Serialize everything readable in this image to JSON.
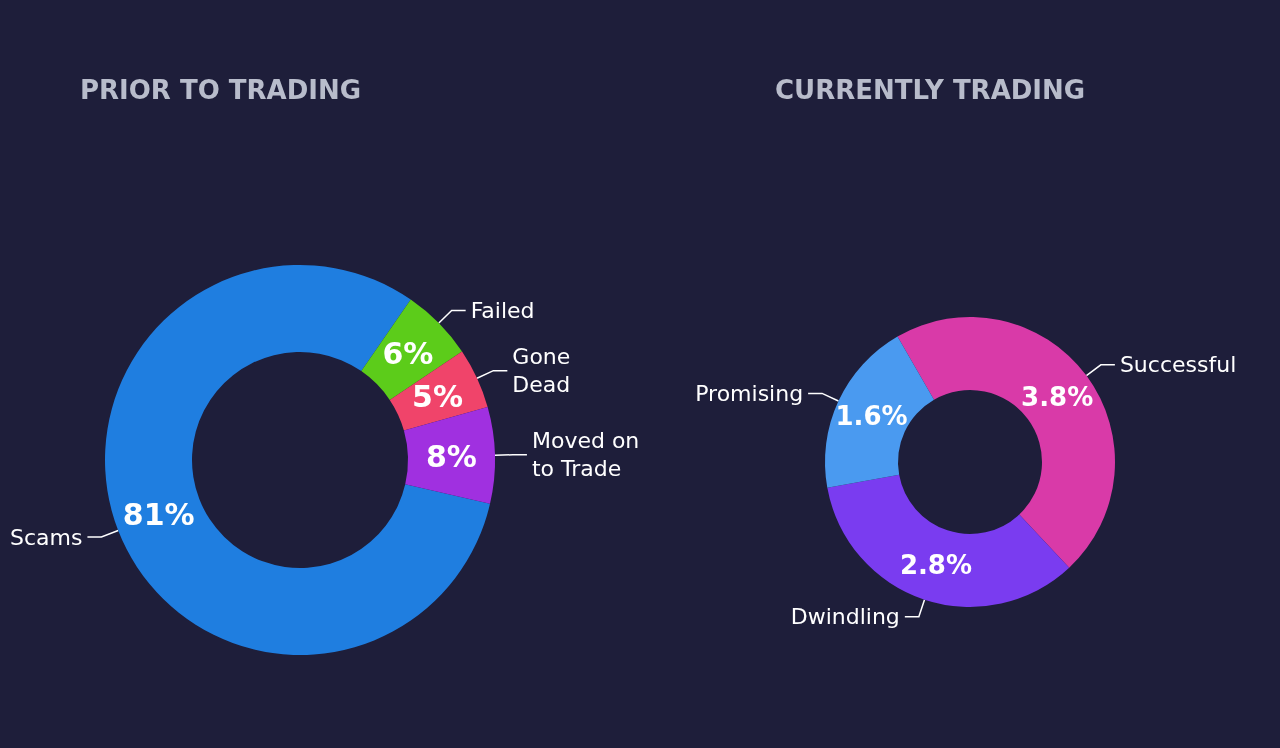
{
  "chart_data": [
    {
      "type": "donut",
      "title": "PRIOR TO TRADING",
      "categories": [
        "Scams",
        "Failed",
        "Gone Dead",
        "Moved on to Trade"
      ],
      "values": [
        81,
        6,
        5,
        8
      ],
      "colors": [
        "#1f7ee0",
        "#5ccc1a",
        "#f0446a",
        "#a030e0"
      ],
      "value_labels": [
        "81%",
        "6%",
        "5%",
        "8%"
      ]
    },
    {
      "type": "donut",
      "title": "CURRENTLY TRADING",
      "categories": [
        "Successful",
        "Dwindling",
        "Promising"
      ],
      "values": [
        3.8,
        2.8,
        1.6
      ],
      "colors": [
        "#d93aa8",
        "#7a3cf0",
        "#4a9af0"
      ],
      "value_labels": [
        "3.8%",
        "2.8%",
        "1.6%"
      ]
    }
  ]
}
